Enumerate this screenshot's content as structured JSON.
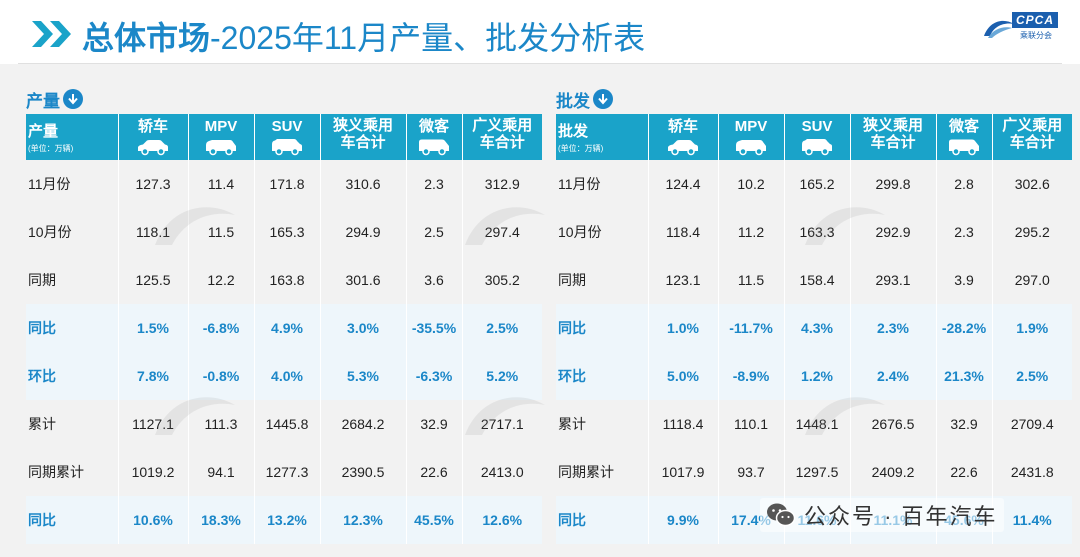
{
  "header": {
    "title_bold": "总体市场",
    "title_rest": "-2025年11月产量、批发分析表",
    "brand_logo": "CPCA",
    "brand_sub": "乘联分会"
  },
  "colors": {
    "accent": "#1b87c8",
    "header_bg": "#1aa3c9",
    "background": "#f2f2f2"
  },
  "left": {
    "section_title": "产量",
    "first_col": "产量",
    "unit": "(单位：万辆)",
    "columns": [
      "轿车",
      "MPV",
      "SUV",
      "狭义乘用车合计",
      "微客",
      "广义乘用车合计"
    ],
    "rows": [
      {
        "label": "11月份",
        "values": [
          "127.3",
          "11.4",
          "171.8",
          "310.6",
          "2.3",
          "312.9"
        ]
      },
      {
        "label": "10月份",
        "values": [
          "118.1",
          "11.5",
          "165.3",
          "294.9",
          "2.5",
          "297.4"
        ]
      },
      {
        "label": "同期",
        "values": [
          "125.5",
          "12.2",
          "163.8",
          "301.6",
          "3.6",
          "305.2"
        ]
      },
      {
        "label": "同比",
        "values": [
          "1.5%",
          "-6.8%",
          "4.9%",
          "3.0%",
          "-35.5%",
          "2.5%"
        ]
      },
      {
        "label": "环比",
        "values": [
          "7.8%",
          "-0.8%",
          "4.0%",
          "5.3%",
          "-6.3%",
          "5.2%"
        ]
      },
      {
        "label": "累计",
        "values": [
          "1127.1",
          "111.3",
          "1445.8",
          "2684.2",
          "32.9",
          "2717.1"
        ]
      },
      {
        "label": "同期累计",
        "values": [
          "1019.2",
          "94.1",
          "1277.3",
          "2390.5",
          "22.6",
          "2413.0"
        ]
      },
      {
        "label": "同比",
        "values": [
          "10.6%",
          "18.3%",
          "13.2%",
          "12.3%",
          "45.5%",
          "12.6%"
        ]
      }
    ]
  },
  "right": {
    "section_title": "批发",
    "first_col": "批发",
    "unit": "(单位：万辆)",
    "columns": [
      "轿车",
      "MPV",
      "SUV",
      "狭义乘用车合计",
      "微客",
      "广义乘用车合计"
    ],
    "rows": [
      {
        "label": "11月份",
        "values": [
          "124.4",
          "10.2",
          "165.2",
          "299.8",
          "2.8",
          "302.6"
        ]
      },
      {
        "label": "10月份",
        "values": [
          "118.4",
          "11.2",
          "163.3",
          "292.9",
          "2.3",
          "295.2"
        ]
      },
      {
        "label": "同期",
        "values": [
          "123.1",
          "11.5",
          "158.4",
          "293.1",
          "3.9",
          "297.0"
        ]
      },
      {
        "label": "同比",
        "values": [
          "1.0%",
          "-11.7%",
          "4.3%",
          "2.3%",
          "-28.2%",
          "1.9%"
        ]
      },
      {
        "label": "环比",
        "values": [
          "5.0%",
          "-8.9%",
          "1.2%",
          "2.4%",
          "21.3%",
          "2.5%"
        ]
      },
      {
        "label": "累计",
        "values": [
          "1118.4",
          "110.1",
          "1448.1",
          "2676.5",
          "32.9",
          "2709.4"
        ]
      },
      {
        "label": "同期累计",
        "values": [
          "1017.9",
          "93.7",
          "1297.5",
          "2409.2",
          "22.6",
          "2431.8"
        ]
      },
      {
        "label": "同比",
        "values": [
          "9.9%",
          "17.4%",
          "11.6%",
          "11.1%",
          "45.6%",
          "11.4%"
        ]
      }
    ]
  },
  "watermark": {
    "account_name": "公众号 · 百年汽车"
  }
}
